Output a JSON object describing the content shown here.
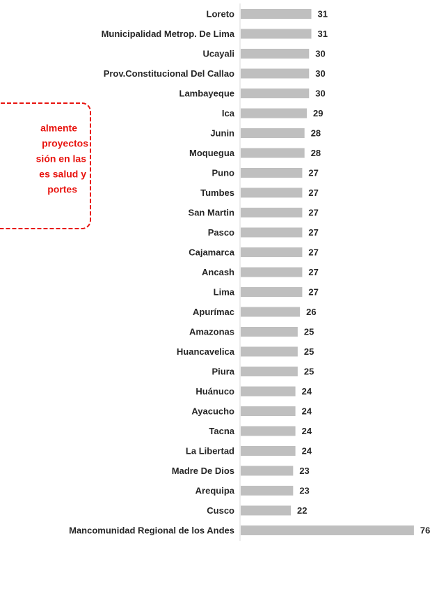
{
  "chart_data": {
    "type": "bar",
    "orientation": "horizontal",
    "categories": [
      "Loreto",
      "Municipalidad Metrop. De Lima",
      "Ucayali",
      "Prov.Constitucional Del Callao",
      "Lambayeque",
      "Ica",
      "Junin",
      "Moquegua",
      "Puno",
      "Tumbes",
      "San Martin",
      "Pasco",
      "Cajamarca",
      "Ancash",
      "Lima",
      "Apurímac",
      "Amazonas",
      "Huancavelica",
      "Piura",
      "Huánuco",
      "Ayacucho",
      "Tacna",
      "La Libertad",
      "Madre De Dios",
      "Arequipa",
      "Cusco",
      "Mancomunidad Regional de los Andes"
    ],
    "values": [
      31,
      31,
      30,
      30,
      30,
      29,
      28,
      28,
      27,
      27,
      27,
      27,
      27,
      27,
      27,
      26,
      25,
      25,
      25,
      24,
      24,
      24,
      24,
      23,
      23,
      22,
      76
    ],
    "color": "#bfbfbf",
    "xlim": [
      0,
      80
    ],
    "annotation": [
      "almente",
      "proyectos",
      "sión en las",
      "es salud y",
      "portes"
    ]
  }
}
